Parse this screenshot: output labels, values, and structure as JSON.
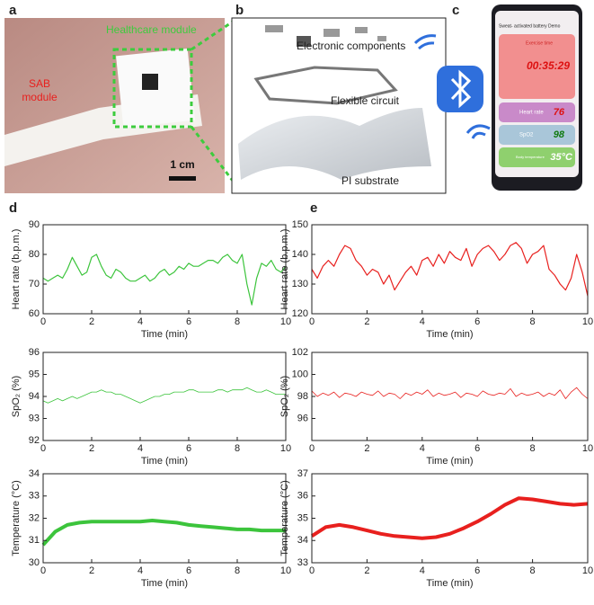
{
  "figure": {
    "a": {
      "label": "a",
      "healthcare": "Healthcare module",
      "sab_1": "SAB",
      "sab_2": "module",
      "scale": "1 cm"
    },
    "b": {
      "label": "b",
      "components": "Electronic components",
      "circuit": "Flexible circuit",
      "substrate": "PI substrate"
    },
    "c": {
      "label": "c",
      "header": "Sweat- activated battery Demo",
      "exercise": "Exercise time",
      "time": "00:35:29",
      "hr_label": "Heart rate",
      "hr": "76",
      "spo2_label": "SpO2",
      "spo2": "98",
      "temp_label": "Body temperature",
      "temp": "35°C"
    },
    "d": {
      "label": "d"
    },
    "e": {
      "label": "e"
    }
  },
  "chart_data": [
    {
      "type": "line",
      "ylabel": "Heart rate (b.p.m.)",
      "xlabel": "Time (min)",
      "color": "#3cc43c",
      "x": [
        0,
        0.2,
        0.4,
        0.6,
        0.8,
        1,
        1.2,
        1.4,
        1.6,
        1.8,
        2,
        2.2,
        2.4,
        2.6,
        2.8,
        3,
        3.2,
        3.4,
        3.6,
        3.8,
        4,
        4.2,
        4.4,
        4.6,
        4.8,
        5,
        5.2,
        5.4,
        5.6,
        5.8,
        6,
        6.2,
        6.4,
        6.6,
        6.8,
        7,
        7.2,
        7.4,
        7.6,
        7.8,
        8,
        8.2,
        8.4,
        8.6,
        8.8,
        9,
        9.2,
        9.4,
        9.6,
        9.8,
        10
      ],
      "values": [
        72,
        71,
        72,
        73,
        72,
        75,
        79,
        76,
        73,
        74,
        79,
        80,
        76,
        73,
        72,
        75,
        74,
        72,
        71,
        71,
        72,
        73,
        71,
        72,
        74,
        75,
        73,
        74,
        76,
        75,
        77,
        76,
        76,
        77,
        78,
        78,
        77,
        79,
        80,
        78,
        77,
        80,
        70,
        63,
        72,
        77,
        76,
        78,
        75,
        74,
        76
      ],
      "xlim": [
        0,
        10
      ],
      "xticks": [
        0,
        2,
        4,
        6,
        8,
        10
      ],
      "ylim": [
        60,
        90
      ],
      "yticks": [
        60,
        70,
        80,
        90
      ]
    },
    {
      "type": "line",
      "ylabel": "SpO₂ (%)",
      "xlabel": "Time (min)",
      "color": "#3cc43c",
      "x": [
        0,
        0.2,
        0.4,
        0.6,
        0.8,
        1,
        1.2,
        1.4,
        1.6,
        1.8,
        2,
        2.2,
        2.4,
        2.6,
        2.8,
        3,
        3.2,
        3.4,
        3.6,
        3.8,
        4,
        4.2,
        4.4,
        4.6,
        4.8,
        5,
        5.2,
        5.4,
        5.6,
        5.8,
        6,
        6.2,
        6.4,
        6.6,
        6.8,
        7,
        7.2,
        7.4,
        7.6,
        7.8,
        8,
        8.2,
        8.4,
        8.6,
        8.8,
        9,
        9.2,
        9.4,
        9.6,
        9.8,
        10
      ],
      "values": [
        93.8,
        93.7,
        93.8,
        93.9,
        93.8,
        93.9,
        94.0,
        93.9,
        94.0,
        94.1,
        94.2,
        94.2,
        94.3,
        94.2,
        94.2,
        94.1,
        94.1,
        94.0,
        93.9,
        93.8,
        93.7,
        93.8,
        93.9,
        94.0,
        94.0,
        94.1,
        94.1,
        94.2,
        94.2,
        94.2,
        94.3,
        94.3,
        94.2,
        94.2,
        94.2,
        94.2,
        94.3,
        94.3,
        94.2,
        94.3,
        94.3,
        94.3,
        94.4,
        94.3,
        94.2,
        94.2,
        94.3,
        94.2,
        94.1,
        94.1,
        94.1
      ],
      "xlim": [
        0,
        10
      ],
      "xticks": [
        0,
        2,
        4,
        6,
        8,
        10
      ],
      "ylim": [
        92,
        96
      ],
      "yticks": [
        92,
        93,
        94,
        95,
        96
      ]
    },
    {
      "type": "line",
      "ylabel": "Temperature (°C)",
      "xlabel": "Time (min)",
      "color": "#3cc43c",
      "x": [
        0,
        0.5,
        1,
        1.5,
        2,
        2.5,
        3,
        3.5,
        4,
        4.5,
        5,
        5.5,
        6,
        6.5,
        7,
        7.5,
        8,
        8.5,
        9,
        9.5,
        10
      ],
      "values": [
        30.8,
        31.4,
        31.7,
        31.8,
        31.85,
        31.85,
        31.85,
        31.85,
        31.85,
        31.9,
        31.85,
        31.8,
        31.7,
        31.65,
        31.6,
        31.55,
        31.5,
        31.5,
        31.45,
        31.45,
        31.45
      ],
      "xlim": [
        0,
        10
      ],
      "xticks": [
        0,
        2,
        4,
        6,
        8,
        10
      ],
      "ylim": [
        30,
        34
      ],
      "yticks": [
        30,
        31,
        32,
        33,
        34
      ]
    },
    {
      "type": "line",
      "ylabel": "Heart rate (b.p.m.)",
      "xlabel": "Time (min)",
      "color": "#e8201e",
      "x": [
        0,
        0.2,
        0.4,
        0.6,
        0.8,
        1,
        1.2,
        1.4,
        1.6,
        1.8,
        2,
        2.2,
        2.4,
        2.6,
        2.8,
        3,
        3.2,
        3.4,
        3.6,
        3.8,
        4,
        4.2,
        4.4,
        4.6,
        4.8,
        5,
        5.2,
        5.4,
        5.6,
        5.8,
        6,
        6.2,
        6.4,
        6.6,
        6.8,
        7,
        7.2,
        7.4,
        7.6,
        7.8,
        8,
        8.2,
        8.4,
        8.6,
        8.8,
        9,
        9.2,
        9.4,
        9.6,
        9.8,
        10
      ],
      "values": [
        135,
        132,
        136,
        138,
        136,
        140,
        143,
        142,
        138,
        136,
        133,
        135,
        134,
        130,
        133,
        128,
        131,
        134,
        136,
        133,
        138,
        139,
        136,
        140,
        137,
        141,
        139,
        138,
        142,
        136,
        140,
        142,
        143,
        141,
        138,
        140,
        143,
        144,
        142,
        137,
        140,
        141,
        143,
        135,
        133,
        130,
        128,
        132,
        140,
        134,
        126
      ],
      "xlim": [
        0,
        10
      ],
      "xticks": [
        0,
        2,
        4,
        6,
        8,
        10
      ],
      "ylim": [
        120,
        150
      ],
      "yticks": [
        120,
        130,
        140,
        150
      ]
    },
    {
      "type": "line",
      "ylabel": "SpO₂ (%)",
      "xlabel": "Time (min)",
      "color": "#e8201e",
      "x": [
        0,
        0.2,
        0.4,
        0.6,
        0.8,
        1,
        1.2,
        1.4,
        1.6,
        1.8,
        2,
        2.2,
        2.4,
        2.6,
        2.8,
        3,
        3.2,
        3.4,
        3.6,
        3.8,
        4,
        4.2,
        4.4,
        4.6,
        4.8,
        5,
        5.2,
        5.4,
        5.6,
        5.8,
        6,
        6.2,
        6.4,
        6.6,
        6.8,
        7,
        7.2,
        7.4,
        7.6,
        7.8,
        8,
        8.2,
        8.4,
        8.6,
        8.8,
        9,
        9.2,
        9.4,
        9.6,
        9.8,
        10
      ],
      "values": [
        98.5,
        98.0,
        98.3,
        98.1,
        98.4,
        97.9,
        98.3,
        98.2,
        98.0,
        98.4,
        98.2,
        98.1,
        98.5,
        98.0,
        98.3,
        98.2,
        97.8,
        98.3,
        98.1,
        98.4,
        98.2,
        98.6,
        98.0,
        98.3,
        98.1,
        98.2,
        98.4,
        97.9,
        98.3,
        98.2,
        98.0,
        98.5,
        98.2,
        98.1,
        98.3,
        98.2,
        98.7,
        98.0,
        98.3,
        98.1,
        98.2,
        98.4,
        98.0,
        98.3,
        98.1,
        98.6,
        97.8,
        98.4,
        98.8,
        98.2,
        97.8
      ],
      "xlim": [
        0,
        10
      ],
      "xticks": [
        0,
        2,
        4,
        6,
        8,
        10
      ],
      "ylim": [
        94,
        102
      ],
      "yticks": [
        96,
        98,
        100,
        102
      ]
    },
    {
      "type": "line",
      "ylabel": "Temperature (°C)",
      "xlabel": "Time (min)",
      "color": "#e8201e",
      "x": [
        0,
        0.5,
        1,
        1.5,
        2,
        2.5,
        3,
        3.5,
        4,
        4.5,
        5,
        5.5,
        6,
        6.5,
        7,
        7.5,
        8,
        8.5,
        9,
        9.5,
        10
      ],
      "values": [
        34.2,
        34.6,
        34.7,
        34.6,
        34.45,
        34.3,
        34.2,
        34.15,
        34.1,
        34.15,
        34.3,
        34.55,
        34.85,
        35.2,
        35.6,
        35.9,
        35.85,
        35.75,
        35.65,
        35.6,
        35.65
      ],
      "xlim": [
        0,
        10
      ],
      "xticks": [
        0,
        2,
        4,
        6,
        8,
        10
      ],
      "ylim": [
        33,
        37
      ],
      "yticks": [
        33,
        34,
        35,
        36,
        37
      ]
    }
  ]
}
